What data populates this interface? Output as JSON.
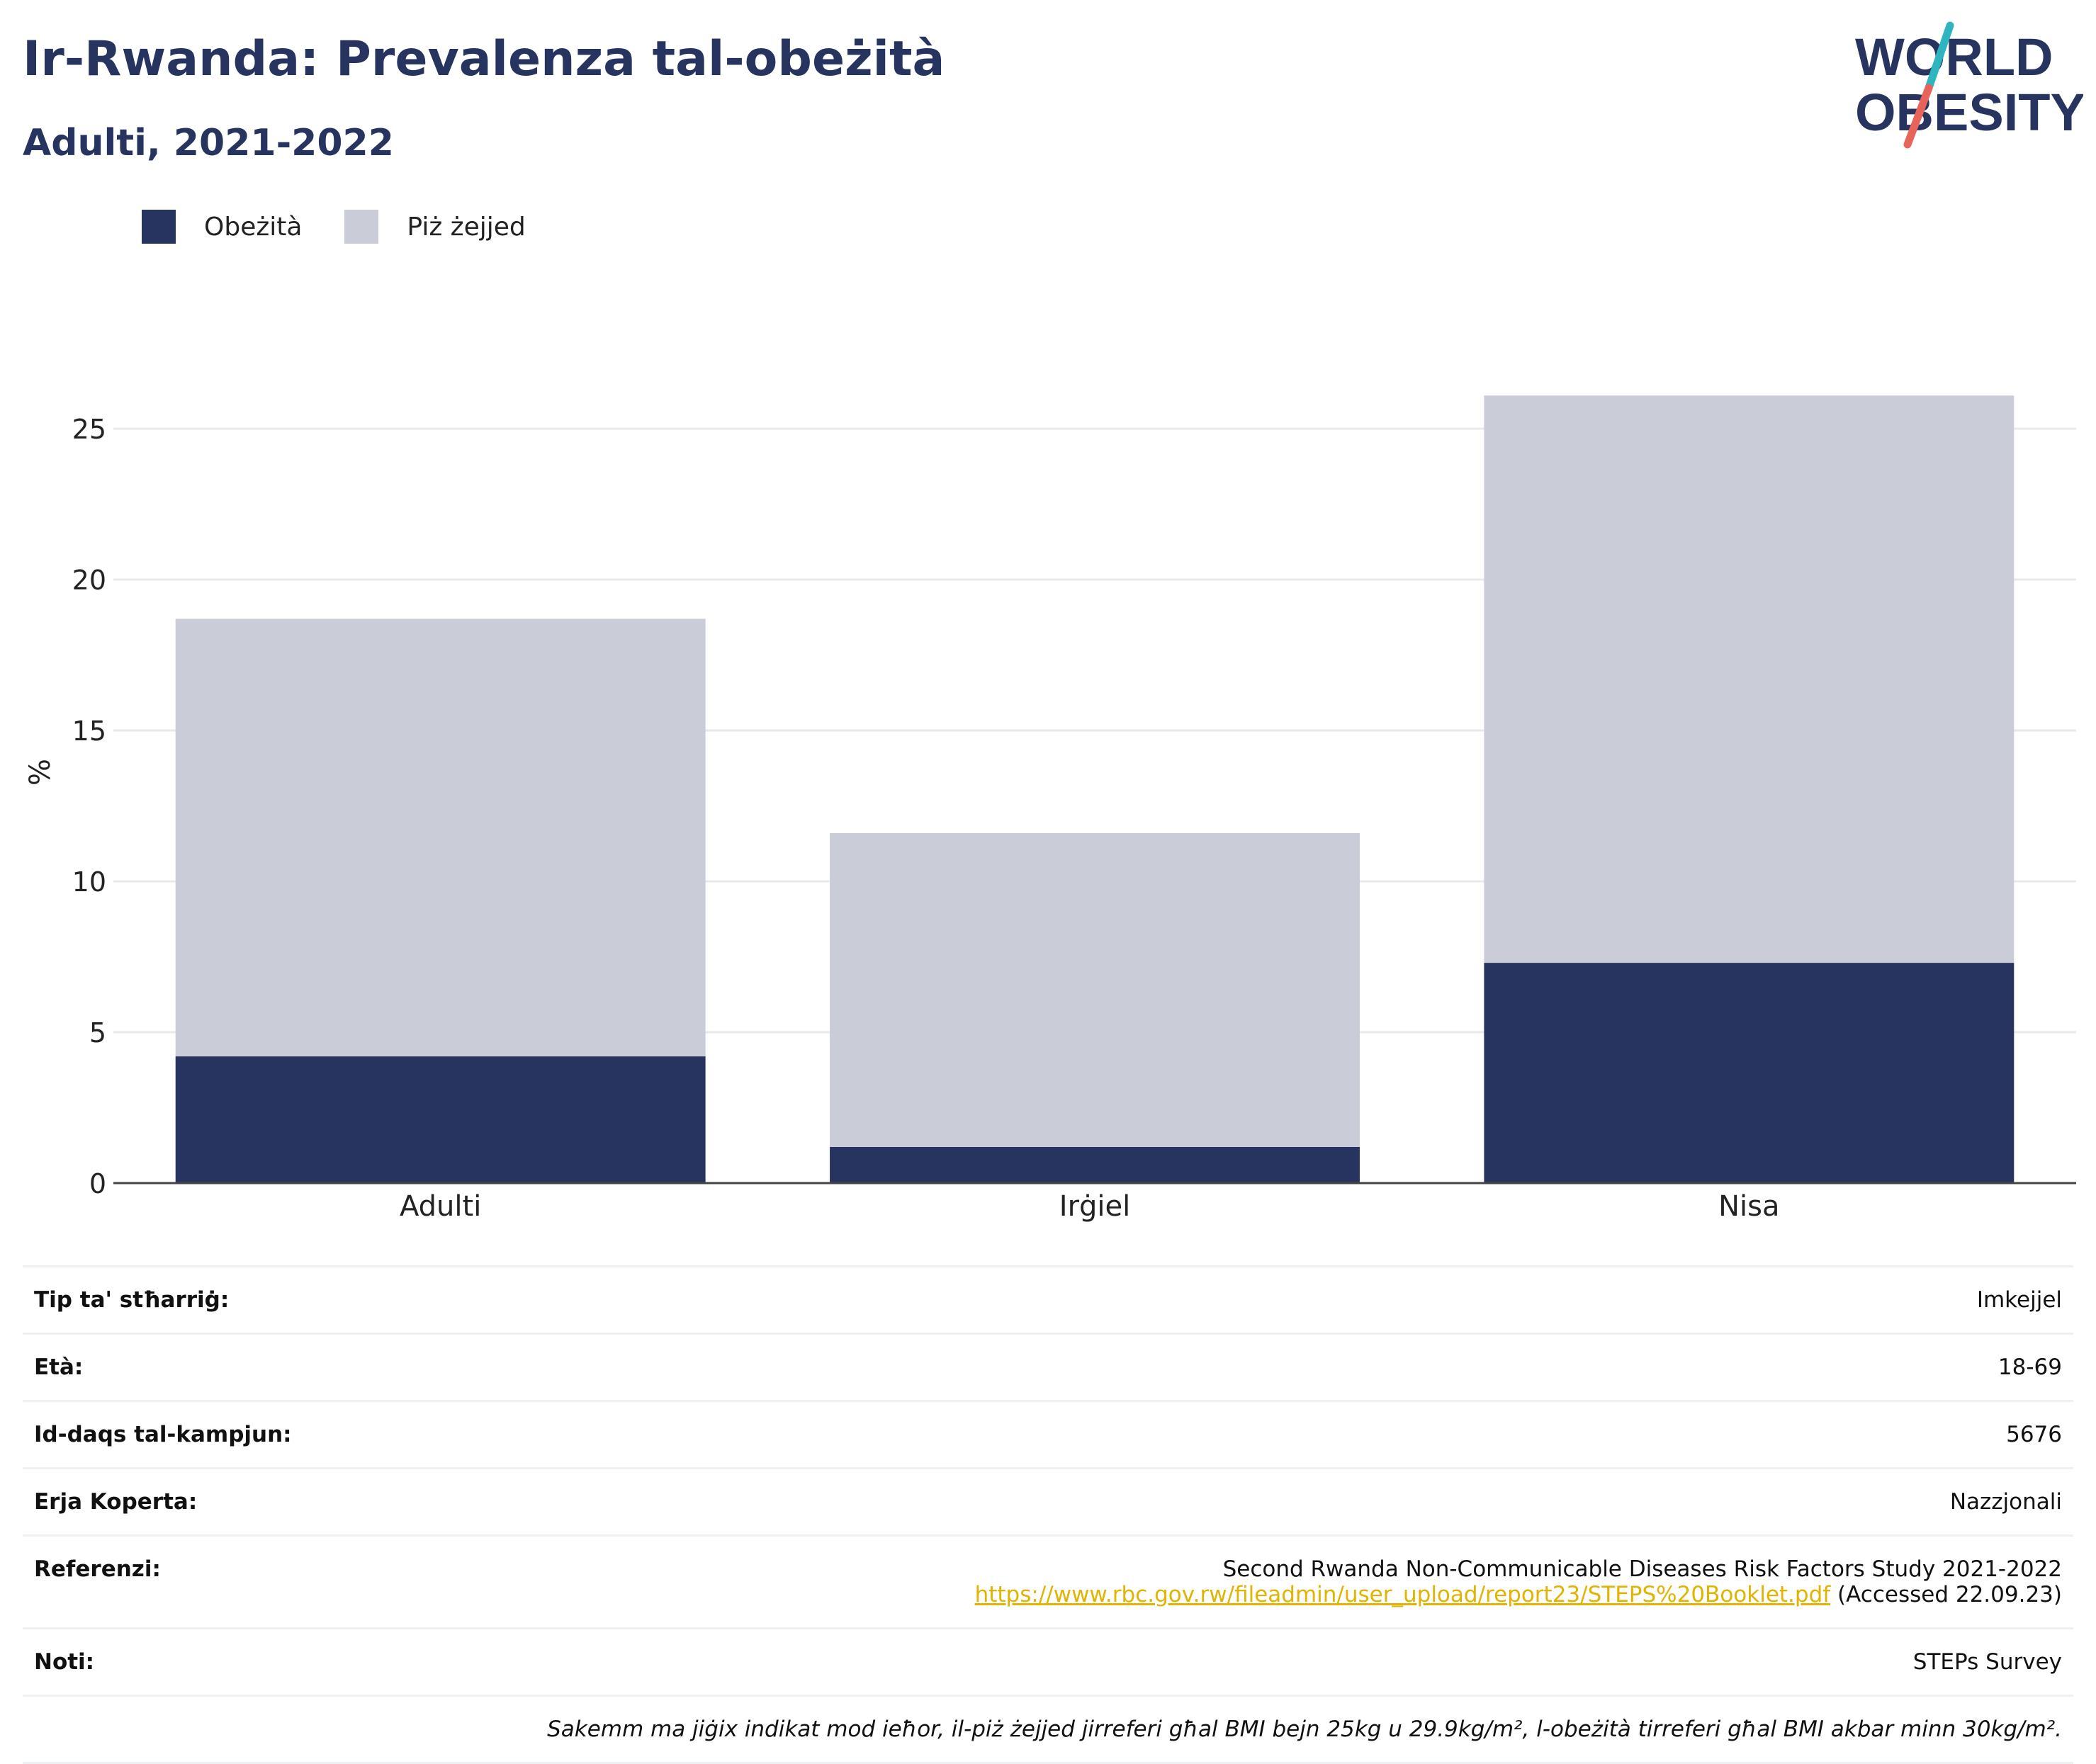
{
  "header": {
    "title": "Ir-Rwanda: Prevalenza tal-obeżità",
    "subtitle": "Adulti, 2021-2022"
  },
  "logo": {
    "line1": "WORLD",
    "line2": "OBESITY",
    "slash_colors": [
      "#2fb5c0",
      "#e8645a"
    ]
  },
  "colors": {
    "obesity": "#283460",
    "overweight": "#cacdd8",
    "title": "#283460",
    "link": "#e0b400"
  },
  "legend": {
    "position": "top-left",
    "items": [
      {
        "label": "Obeżità",
        "color": "#283460"
      },
      {
        "label": "Piż żejjed",
        "color": "#cacdd8"
      }
    ]
  },
  "chart_data": {
    "type": "bar",
    "stacked": true,
    "categories": [
      "Adulti",
      "Irġiel",
      "Nisa"
    ],
    "series": [
      {
        "name": "Obeżità",
        "values": [
          4.2,
          1.2,
          7.3
        ]
      },
      {
        "name": "Piż żejjed",
        "values": [
          14.5,
          10.4,
          18.8
        ]
      }
    ],
    "ylabel": "%",
    "ylim": [
      0,
      27
    ],
    "yticks": [
      0,
      5,
      10,
      15,
      20,
      25
    ],
    "grid": true
  },
  "info": {
    "rows": [
      {
        "key": "Tip ta' stħarriġ:",
        "value": "Imkejjel"
      },
      {
        "key": "Età:",
        "value": "18-69"
      },
      {
        "key": "Id-daqs tal-kampjun:",
        "value": "5676"
      },
      {
        "key": "Erja Koperta:",
        "value": "Nazzjonali"
      }
    ],
    "reference": {
      "key": "Referenzi:",
      "text": "Second Rwanda Non-Communicable Diseases Risk Factors Study 2021-2022",
      "url": "https://www.rbc.gov.rw/fileadmin/user_upload/report23/STEPS%20Booklet.pdf",
      "accessed": "(Accessed 22.09.23)"
    },
    "notes": {
      "key": "Noti:",
      "value": "STEPs Survey"
    },
    "footnote": "Sakemm ma jiġix indikat mod ieħor, il-piż żejjed jirreferi għal BMI bejn 25kg u 29.9kg/m², l-obeżità tirreferi għal BMI akbar minn 30kg/m²."
  }
}
